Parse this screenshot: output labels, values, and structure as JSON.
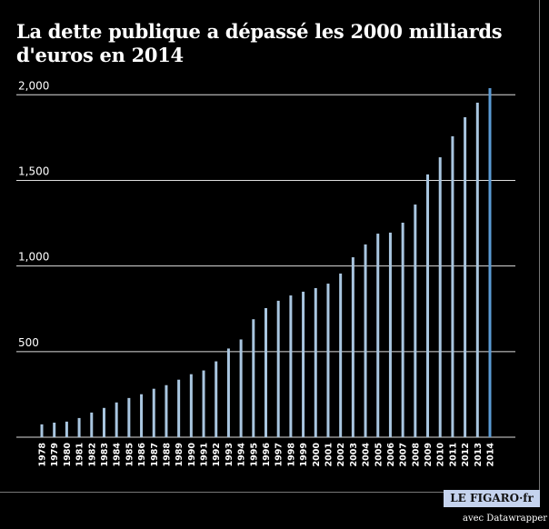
{
  "chart_data": {
    "type": "bar",
    "title": "La dette publique a dépassé les 2000 milliards d'euros en 2014",
    "xlabel": "",
    "ylabel": "",
    "ylim": [
      0,
      2000
    ],
    "yticks": [
      500,
      1000,
      1500,
      2000
    ],
    "ytick_labels": [
      "500",
      "1,000",
      "1,500",
      "2,000"
    ],
    "grid": true,
    "categories": [
      "1978",
      "1979",
      "1980",
      "1981",
      "1982",
      "1983",
      "1984",
      "1985",
      "1986",
      "1987",
      "1988",
      "1989",
      "1990",
      "1991",
      "1992",
      "1993",
      "1994",
      "1995",
      "1996",
      "1997",
      "1998",
      "1999",
      "2000",
      "2001",
      "2002",
      "2003",
      "2004",
      "2005",
      "2006",
      "2007",
      "2008",
      "2009",
      "2010",
      "2011",
      "2012",
      "2013",
      "2014"
    ],
    "values": [
      75,
      85,
      91,
      112,
      144,
      171,
      203,
      229,
      251,
      283,
      304,
      336,
      368,
      390,
      443,
      518,
      571,
      689,
      754,
      797,
      828,
      850,
      871,
      897,
      956,
      1051,
      1126,
      1189,
      1195,
      1253,
      1359,
      1535,
      1635,
      1758,
      1869,
      1954,
      2039
    ],
    "colors": {
      "bar": "#a9c6e0",
      "highlight": "#5b9bd5",
      "grid": "#dddddd",
      "background": "#000000"
    }
  },
  "footer": {
    "logo": "LE FIGARO·fr",
    "credit": "avec Datawrapper"
  }
}
